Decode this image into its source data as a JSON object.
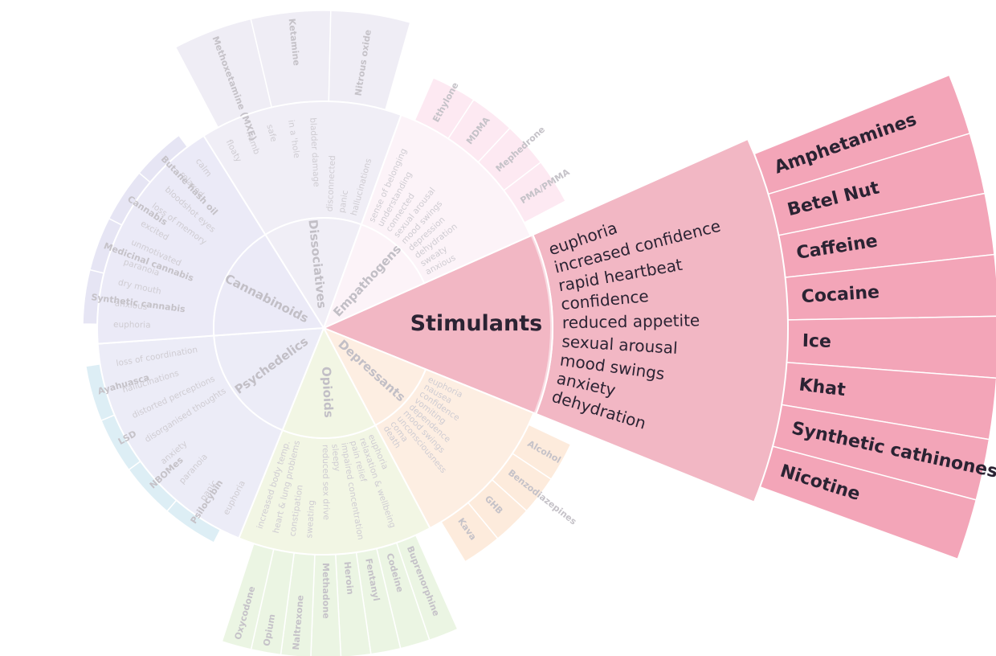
{
  "active_category": "stimulants",
  "categories": [
    {
      "key": "stimulants",
      "name": "Stimulants",
      "color": "#f2b7c4",
      "outer_color": "#f3a5b8",
      "effects": [
        "euphoria",
        "increased confidence",
        "rapid heartbeat",
        "confidence",
        "reduced appetite",
        "sexual arousal",
        "mood swings",
        "anxiety",
        "dehydration"
      ],
      "drugs": [
        "Amphetamines",
        "Betel Nut",
        "Caffeine",
        "Cocaine",
        "Ice",
        "Khat",
        "Synthetic cathinones",
        "Nicotine"
      ]
    },
    {
      "key": "depressants",
      "name": "Depressants",
      "color": "#fdeee2",
      "outer_color": "#fdebdc",
      "effects": [
        "euphoria",
        "nausea",
        "confidence",
        "vomiting",
        "dependence",
        "mood swings",
        "unconsciousness",
        "coma",
        "death"
      ],
      "drugs": [
        "Alcohol",
        "Benzodiazepines",
        "GHB",
        "Kava"
      ]
    },
    {
      "key": "opioids",
      "name": "Opioids",
      "color": "#f2f6e4",
      "outer_color": "#ebf5e3",
      "effects": [
        "euphoria",
        "relaxation & wellbeing",
        "pain relief",
        "impaired concentration",
        "sleepy",
        "reduced sex drive",
        "sweating",
        "constipation",
        "heart & lung problems",
        "increased body temp."
      ],
      "drugs": [
        "Buprenorphine",
        "Codeine",
        "Fentanyl",
        "Heroin",
        "Methadone",
        "Naltrexone",
        "Opium",
        "Oxycodone"
      ]
    },
    {
      "key": "psychedelics",
      "name": "Psychedelics",
      "color": "#ececf7",
      "outer_color": "#ddeef5",
      "effects": [
        "euphoria",
        "panic",
        "paranoia",
        "anxiety",
        "disorganised thoughts",
        "distorted perceptions",
        "hallucinations",
        "loss of coordination"
      ],
      "drugs": [
        "Psilocybin",
        "NBOMes",
        "LSD",
        "Ayahuasca"
      ]
    },
    {
      "key": "cannabinoids",
      "name": "Cannabinoids",
      "color": "#ebeaf7",
      "outer_color": "#e6e5f4",
      "effects": [
        "euphoria",
        "anxious",
        "dry mouth",
        "paranoia",
        "unmotivated",
        "excited",
        "loss of memory",
        "bloodshot eyes",
        "relaxed",
        "calm"
      ],
      "drugs": [
        "Synthetic cannabis",
        "Medicinal cannabis",
        "Cannabis",
        "Butane hash oil"
      ]
    },
    {
      "key": "dissociatives",
      "name": "Dissociatives",
      "color": "#f0eef6",
      "outer_color": "#efedf5",
      "effects": [
        "floaty",
        "numb",
        "safe",
        "in a 'hole",
        "bladder damage",
        "disconnected",
        "panic",
        "hallucinations"
      ],
      "drugs": [
        "Methoxetamine (MXE)",
        "Ketamine",
        "Nitrous oxide"
      ]
    },
    {
      "key": "empathogens",
      "name": "Empathogens",
      "color": "#fcf3f8",
      "outer_color": "#fde9f2",
      "effects": [
        "sense of belonging",
        "understanding",
        "connected",
        "sexual arousal",
        "mood swings",
        "depression",
        "dehydration",
        "sweaty",
        "anxious"
      ],
      "drugs": [
        "Ethylone",
        "MDMA",
        "Mephedrone",
        "PMA/PMMA"
      ]
    }
  ]
}
